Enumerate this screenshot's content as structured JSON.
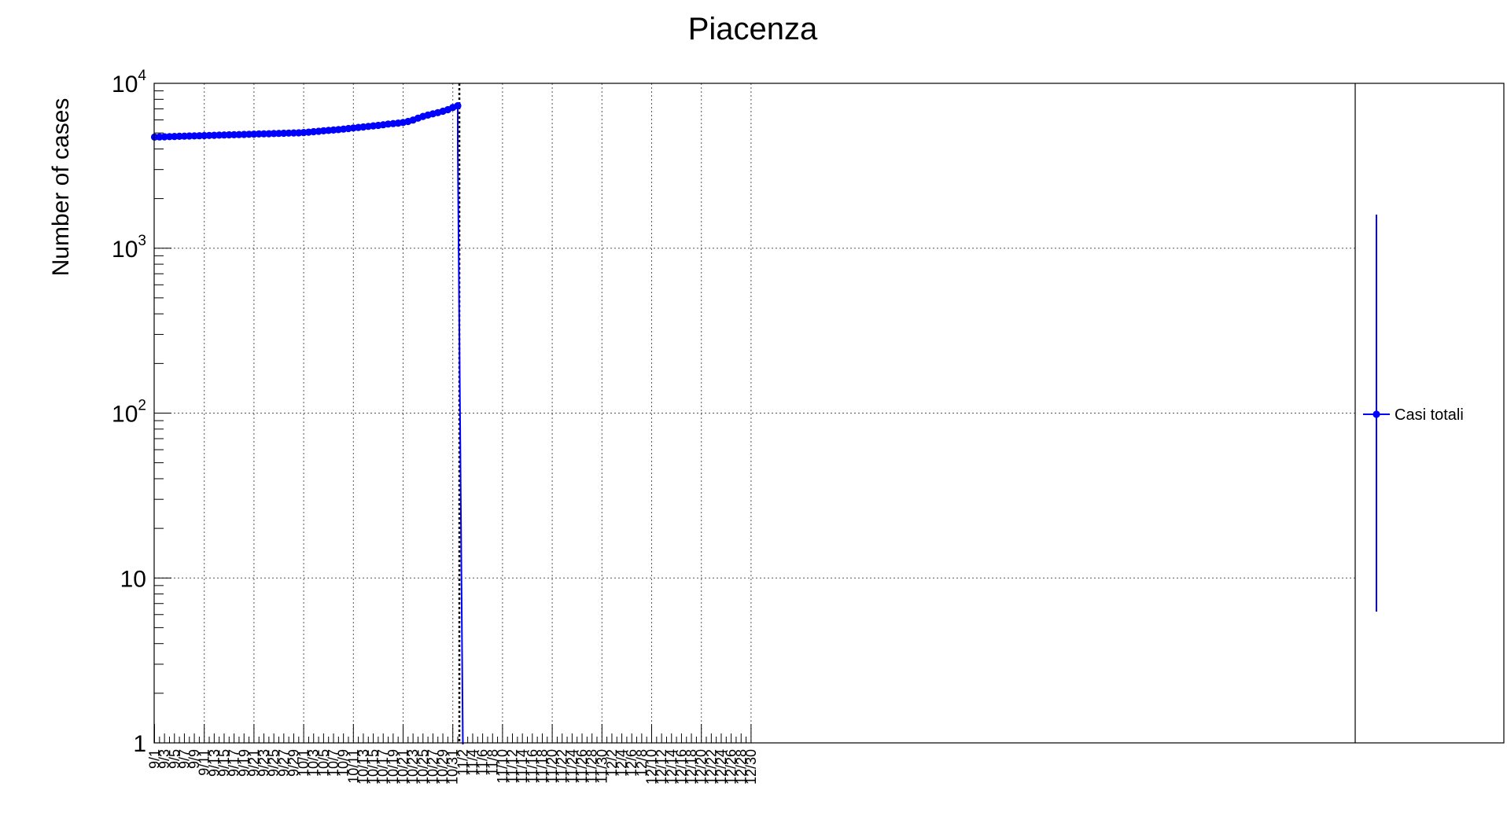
{
  "chart_data": {
    "type": "line",
    "title": "Piacenza",
    "xlabel": "",
    "ylabel": "Number of cases",
    "y_scale": "log",
    "ylim": [
      1,
      10000
    ],
    "y_ticks": [
      {
        "value": 1,
        "base": "1",
        "exp": ""
      },
      {
        "value": 10,
        "base": "10",
        "exp": ""
      },
      {
        "value": 100,
        "base": "10",
        "exp": "2"
      },
      {
        "value": 1000,
        "base": "10",
        "exp": "3"
      },
      {
        "value": 10000,
        "base": "10",
        "exp": "4"
      }
    ],
    "x_tick_labels": [
      "9/1",
      "9/3",
      "9/5",
      "9/7",
      "9/9",
      "9/11",
      "9/13",
      "9/15",
      "9/17",
      "9/19",
      "9/21",
      "9/23",
      "9/25",
      "9/27",
      "9/29",
      "10/1",
      "10/3",
      "10/5",
      "10/7",
      "10/9",
      "10/11",
      "10/13",
      "10/15",
      "10/17",
      "10/19",
      "10/21",
      "10/23",
      "10/25",
      "10/27",
      "10/29",
      "10/31",
      "11/2",
      "11/4",
      "11/6",
      "11/8",
      "11/10",
      "11/12",
      "11/14",
      "11/16",
      "11/18",
      "11/20",
      "11/22",
      "11/24",
      "11/26",
      "11/28",
      "11/30",
      "12/2",
      "12/4",
      "12/6",
      "12/8",
      "12/10",
      "12/12",
      "12/14",
      "12/16",
      "12/18",
      "12/20",
      "12/22",
      "12/24",
      "12/26",
      "12/28",
      "12/30"
    ],
    "grid": true,
    "legend_position": "right",
    "marker_line": "11/1",
    "series": [
      {
        "name": "Casi totali",
        "color": "#0000ff",
        "x": [
          "9/1",
          "9/2",
          "9/3",
          "9/4",
          "9/5",
          "9/6",
          "9/7",
          "9/8",
          "9/9",
          "9/10",
          "9/11",
          "9/12",
          "9/13",
          "9/14",
          "9/15",
          "9/16",
          "9/17",
          "9/18",
          "9/19",
          "9/20",
          "9/21",
          "9/22",
          "9/23",
          "9/24",
          "9/25",
          "9/26",
          "9/27",
          "9/28",
          "9/29",
          "9/30",
          "10/1",
          "10/2",
          "10/3",
          "10/4",
          "10/5",
          "10/6",
          "10/7",
          "10/8",
          "10/9",
          "10/10",
          "10/11",
          "10/12",
          "10/13",
          "10/14",
          "10/15",
          "10/16",
          "10/17",
          "10/18",
          "10/19",
          "10/20",
          "10/21",
          "10/22",
          "10/23",
          "10/24",
          "10/25",
          "10/26",
          "10/27",
          "10/28",
          "10/29",
          "10/30",
          "10/31",
          "11/1"
        ],
        "values": [
          4720,
          4730,
          4740,
          4750,
          4760,
          4770,
          4780,
          4790,
          4800,
          4810,
          4820,
          4830,
          4840,
          4850,
          4860,
          4870,
          4880,
          4890,
          4900,
          4910,
          4920,
          4930,
          4940,
          4950,
          4960,
          4970,
          4980,
          4990,
          5000,
          5010,
          5030,
          5060,
          5090,
          5120,
          5150,
          5180,
          5210,
          5240,
          5280,
          5320,
          5360,
          5400,
          5440,
          5480,
          5520,
          5560,
          5610,
          5660,
          5700,
          5740,
          5790,
          5870,
          5990,
          6150,
          6300,
          6420,
          6530,
          6640,
          6770,
          6920,
          7140,
          7310
        ]
      }
    ]
  }
}
